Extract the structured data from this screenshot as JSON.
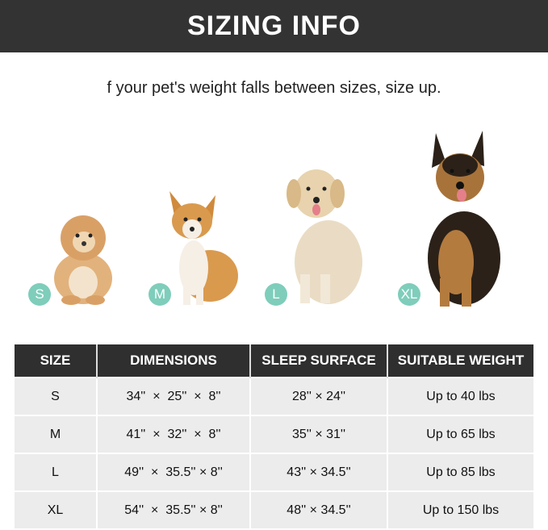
{
  "title": "SIZING INFO",
  "subtitle": "f your pet's weight falls between sizes, size up.",
  "badge_color": "#7fcdbb",
  "dogs": [
    {
      "size": "S",
      "image": "small-fluffy-dog"
    },
    {
      "size": "M",
      "image": "corgi"
    },
    {
      "size": "L",
      "image": "golden-retriever"
    },
    {
      "size": "XL",
      "image": "german-shepherd"
    }
  ],
  "table": {
    "headers": [
      "SIZE",
      "DIMENSIONS",
      "SLEEP SURFACE",
      "SUITABLE WEIGHT"
    ],
    "rows": [
      [
        "S",
        "34''  ×  25''  ×  8''",
        "28'' × 24''",
        "Up to 40 lbs"
      ],
      [
        "M",
        "41''  ×  32''  ×  8''",
        "35'' × 31''",
        "Up to 65 lbs"
      ],
      [
        "L",
        "49''  ×  35.5'' × 8''",
        "43'' × 34.5''",
        "Up to 85 lbs"
      ],
      [
        "XL",
        "54''  ×  35.5'' × 8''",
        "48'' × 34.5''",
        "Up to 150 lbs"
      ]
    ]
  }
}
